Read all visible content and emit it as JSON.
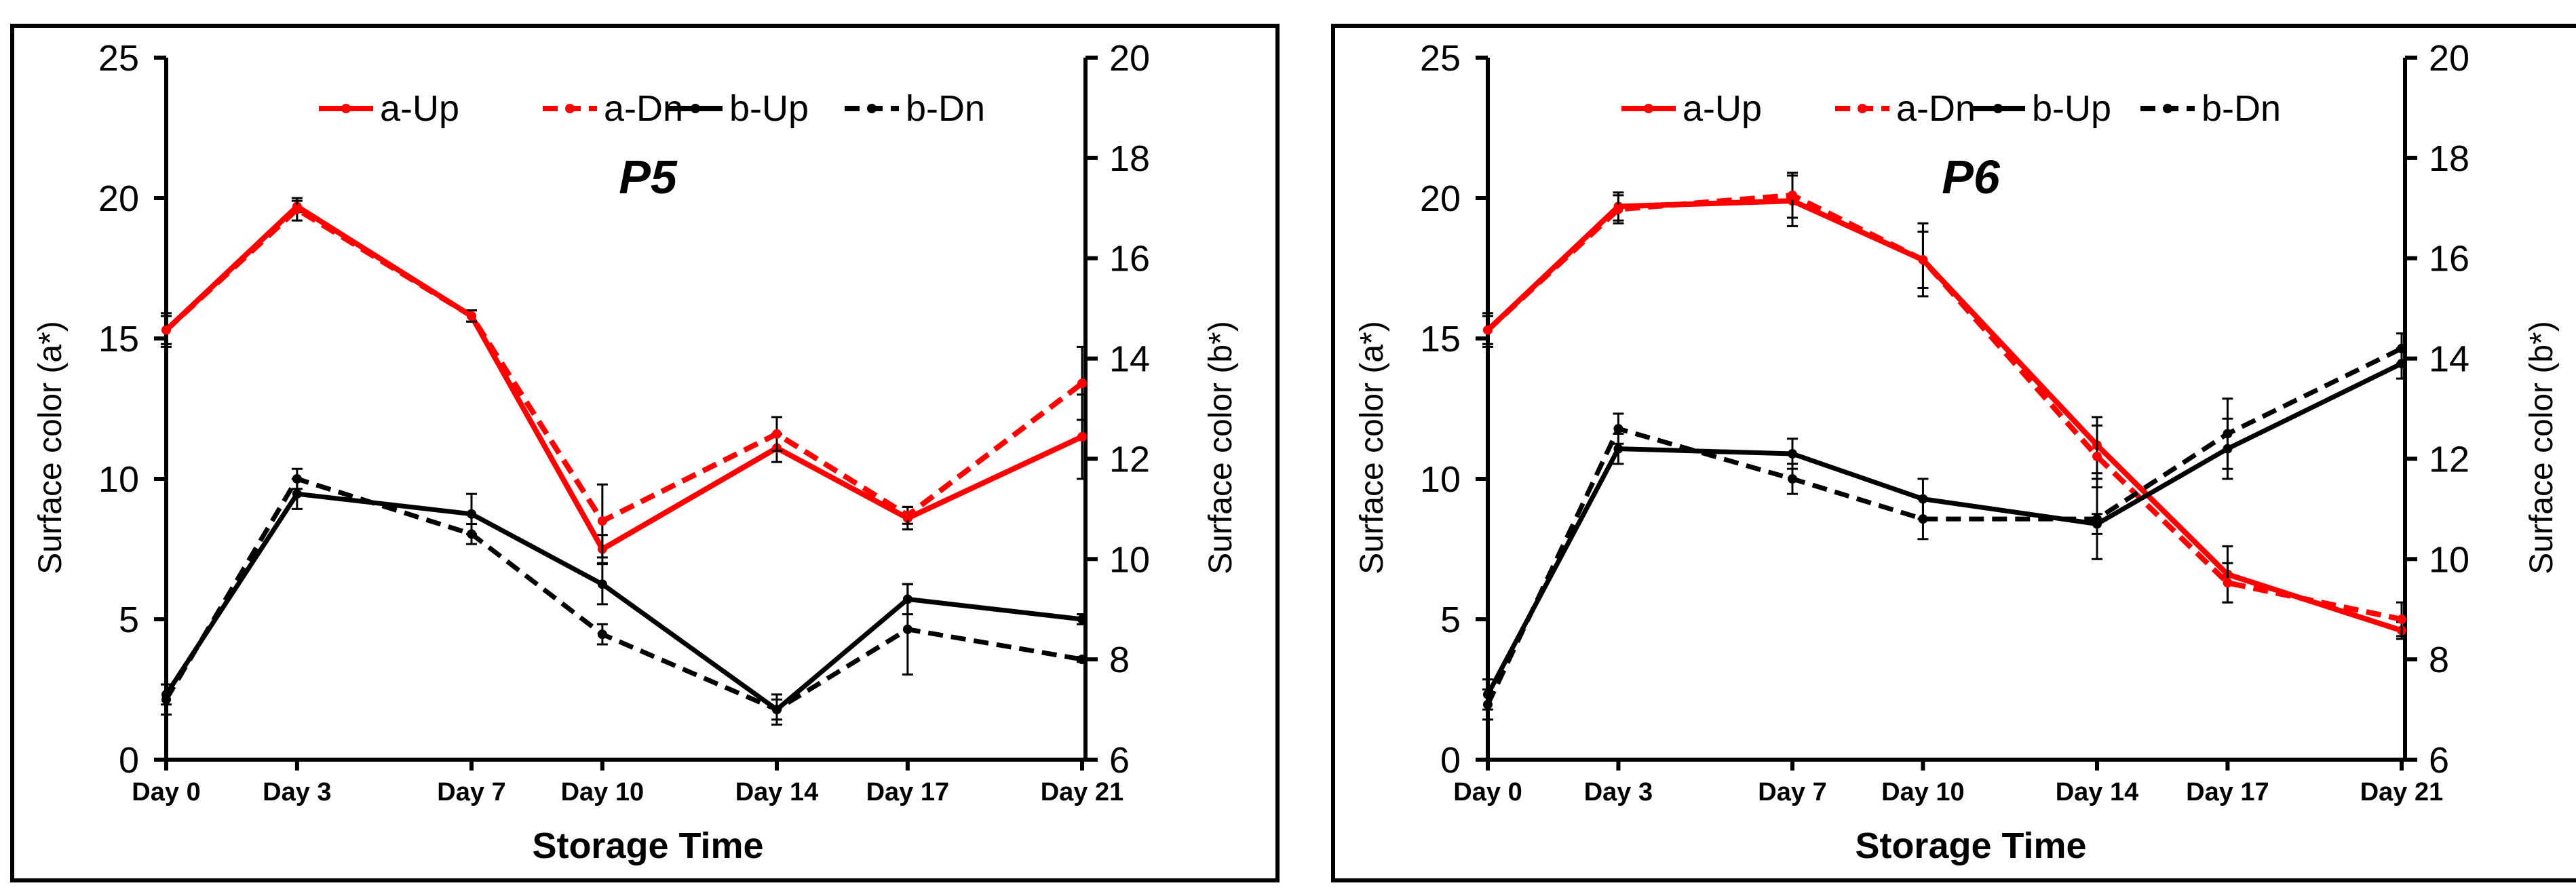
{
  "colors": {
    "a_series": "#ff0000",
    "b_series": "#000000"
  },
  "chart_data": [
    {
      "type": "line",
      "title": "P5",
      "xlabel": "Storage Time",
      "ylabel_left": "Surface color (a*)",
      "ylabel_right": "Surface color (b*)",
      "ylim_left": [
        0,
        25
      ],
      "ylim_right": [
        6,
        20
      ],
      "yticks_left": [
        "0",
        "5",
        "10",
        "15",
        "20",
        "25"
      ],
      "yticks_right": [
        "6",
        "8",
        "10",
        "12",
        "14",
        "16",
        "18",
        "20"
      ],
      "categories": [
        "Day 0",
        "Day 3",
        "Day 7",
        "Day 10",
        "Day 14",
        "Day 17",
        "Day 21"
      ],
      "x_days": [
        0,
        3,
        7,
        10,
        14,
        17,
        21
      ],
      "series": [
        {
          "name": "a-Up",
          "axis": "left",
          "color": "#ff0000",
          "dash": "solid",
          "values": [
            15.3,
            19.7,
            15.8,
            7.5,
            11.1,
            8.6,
            11.5
          ],
          "errors": [
            0.6,
            0.2,
            0.2,
            0.5,
            0.5,
            0.4,
            1.5
          ]
        },
        {
          "name": "a-Dn",
          "axis": "left",
          "color": "#ff0000",
          "dash": "dashed",
          "values": [
            15.3,
            19.6,
            15.8,
            8.5,
            11.6,
            8.7,
            13.4
          ],
          "errors": [
            0.5,
            0.4,
            0.2,
            1.3,
            0.6,
            0.3,
            1.3
          ]
        },
        {
          "name": "b-Up",
          "axis": "right",
          "color": "#000000",
          "dash": "solid",
          "values": [
            7.3,
            11.3,
            10.9,
            9.5,
            7.0,
            9.2,
            8.8
          ],
          "errors": [
            0.2,
            0.3,
            0.4,
            0.4,
            0.2,
            0.3,
            0.1
          ]
        },
        {
          "name": "b-Dn",
          "axis": "right",
          "color": "#000000",
          "dash": "dashed",
          "values": [
            7.2,
            11.6,
            10.5,
            8.5,
            7.0,
            8.6,
            8.0
          ],
          "errors": [
            0.3,
            0.2,
            0.2,
            0.2,
            0.3,
            0.9,
            0.05
          ]
        }
      ]
    },
    {
      "type": "line",
      "title": "P6",
      "xlabel": "Storage Time",
      "ylabel_left": "Surface color (a*)",
      "ylabel_right": "Surface color (b*)",
      "ylim_left": [
        0,
        25
      ],
      "ylim_right": [
        6,
        20
      ],
      "yticks_left": [
        "0",
        "5",
        "10",
        "15",
        "20",
        "25"
      ],
      "yticks_right": [
        "6",
        "8",
        "10",
        "12",
        "14",
        "16",
        "18",
        "20"
      ],
      "categories": [
        "Day 0",
        "Day 3",
        "Day 7",
        "Day 10",
        "Day 14",
        "Day 17",
        "Day 21"
      ],
      "x_days": [
        0,
        3,
        7,
        10,
        14,
        17,
        21
      ],
      "series": [
        {
          "name": "a-Up",
          "axis": "left",
          "color": "#ff0000",
          "dash": "solid",
          "values": [
            15.3,
            19.7,
            19.9,
            17.8,
            11.2,
            6.6,
            4.6
          ],
          "errors": [
            0.6,
            0.5,
            0.9,
            1.3,
            1.0,
            1.0,
            0.3
          ]
        },
        {
          "name": "a-Dn",
          "axis": "left",
          "color": "#ff0000",
          "dash": "dashed",
          "values": [
            15.3,
            19.6,
            20.1,
            17.8,
            10.8,
            6.3,
            5.0
          ],
          "errors": [
            0.5,
            0.5,
            0.8,
            1.0,
            1.1,
            0.7,
            0.6
          ]
        },
        {
          "name": "b-Up",
          "axis": "right",
          "color": "#000000",
          "dash": "solid",
          "values": [
            7.3,
            12.2,
            12.1,
            11.2,
            10.7,
            12.2,
            13.9
          ],
          "errors": [
            0.3,
            0.3,
            0.3,
            0.4,
            0.2,
            0.6,
            0.3
          ]
        },
        {
          "name": "b-Dn",
          "axis": "right",
          "color": "#000000",
          "dash": "dashed",
          "values": [
            7.1,
            12.6,
            11.6,
            10.8,
            10.8,
            12.5,
            14.2
          ],
          "errors": [
            0.3,
            0.3,
            0.3,
            0.4,
            0.8,
            0.7,
            0.3
          ]
        }
      ]
    }
  ]
}
